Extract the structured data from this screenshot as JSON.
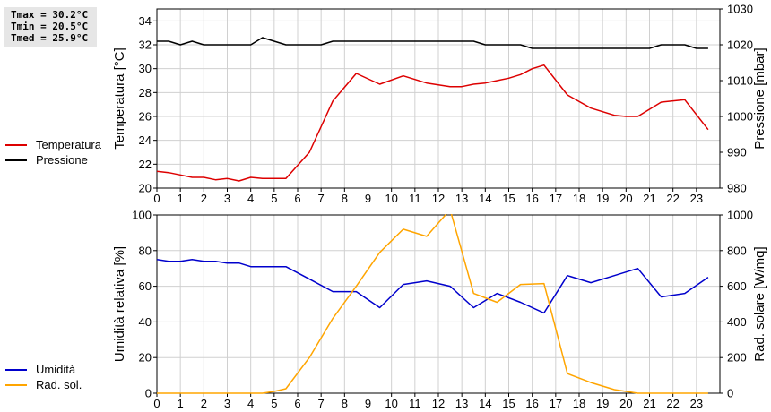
{
  "stats": {
    "tmax": "Tmax = 30.2°C",
    "tmin": "Tmin = 20.5°C",
    "tmed": "Tmed = 25.9°C"
  },
  "legend_top": [
    {
      "label": "Temperatura",
      "color": "#dd0000"
    },
    {
      "label": "Pressione",
      "color": "#000000"
    }
  ],
  "legend_bottom": [
    {
      "label": "Umidità",
      "color": "#0000cc"
    },
    {
      "label": "Rad. sol.",
      "color": "#ffa500"
    }
  ],
  "chart_data": [
    {
      "type": "line",
      "ylabel": "Temperatura [°C]",
      "y2label": "Pressione [mbar]",
      "xlim": [
        0,
        24
      ],
      "ylim": [
        20,
        35
      ],
      "y2lim": [
        980,
        1030
      ],
      "yticks": [
        20,
        22,
        24,
        26,
        28,
        30,
        32,
        34
      ],
      "y2ticks": [
        980,
        990,
        1000,
        1010,
        1020,
        1030
      ],
      "xticks": [
        0,
        1,
        2,
        3,
        4,
        5,
        6,
        7,
        8,
        9,
        10,
        11,
        12,
        13,
        14,
        15,
        16,
        17,
        18,
        19,
        20,
        21,
        22,
        23
      ],
      "grid": true,
      "series": [
        {
          "name": "Temperatura",
          "axis": "left",
          "color": "#dd0000",
          "x": [
            0,
            0.5,
            1,
            1.5,
            2,
            2.5,
            3,
            3.5,
            4,
            4.5,
            5,
            5.5,
            6.5,
            7.5,
            8.5,
            9.5,
            10.5,
            11.5,
            12.5,
            13,
            13.5,
            14,
            14.5,
            15,
            15.5,
            16,
            16.5,
            17.5,
            18.5,
            19.5,
            20,
            20.5,
            21.5,
            22.5,
            23.5
          ],
          "y": [
            21.4,
            21.3,
            21.1,
            20.9,
            20.9,
            20.7,
            20.8,
            20.6,
            20.9,
            20.8,
            20.8,
            20.8,
            23.0,
            27.3,
            29.6,
            28.7,
            29.4,
            28.8,
            28.5,
            28.5,
            28.7,
            28.8,
            29.0,
            29.2,
            29.5,
            30.0,
            30.3,
            27.8,
            26.7,
            26.1,
            26.0,
            26.0,
            27.2,
            27.4,
            24.9
          ]
        },
        {
          "name": "Pressione",
          "axis": "right",
          "color": "#000000",
          "x": [
            0,
            0.5,
            1,
            1.5,
            2,
            2.5,
            3,
            3.5,
            4,
            4.5,
            5,
            5.5,
            6,
            6.5,
            7,
            7.5,
            8,
            8.5,
            9,
            9.5,
            10,
            10.5,
            11,
            11.5,
            12,
            12.5,
            13,
            13.5,
            14,
            14.5,
            15,
            15.5,
            16,
            16.5,
            17,
            17.5,
            18,
            18.5,
            19,
            19.5,
            20,
            20.5,
            21,
            21.5,
            22,
            22.5,
            23,
            23.5
          ],
          "y": [
            1021,
            1021,
            1020,
            1021,
            1020,
            1020,
            1020,
            1020,
            1020,
            1022,
            1021,
            1020,
            1020,
            1020,
            1020,
            1021,
            1021,
            1021,
            1021,
            1021,
            1021,
            1021,
            1021,
            1021,
            1021,
            1021,
            1021,
            1021,
            1020,
            1020,
            1020,
            1020,
            1019,
            1019,
            1019,
            1019,
            1019,
            1019,
            1019,
            1019,
            1019,
            1019,
            1019,
            1020,
            1020,
            1020,
            1019,
            1019
          ]
        }
      ]
    },
    {
      "type": "line",
      "ylabel": "Umidità relativa [%]",
      "y2label": "Rad. solare [W/mq]",
      "xlim": [
        0,
        24
      ],
      "ylim": [
        0,
        100
      ],
      "y2lim": [
        0,
        1000
      ],
      "yticks": [
        0,
        20,
        40,
        60,
        80,
        100
      ],
      "y2ticks": [
        0,
        200,
        400,
        600,
        800,
        1000
      ],
      "xticks": [
        0,
        1,
        2,
        3,
        4,
        5,
        6,
        7,
        8,
        9,
        10,
        11,
        12,
        13,
        14,
        15,
        16,
        17,
        18,
        19,
        20,
        21,
        22,
        23
      ],
      "grid": true,
      "series": [
        {
          "name": "Umidità",
          "axis": "left",
          "color": "#0000cc",
          "x": [
            0,
            0.5,
            1,
            1.5,
            2,
            2.5,
            3,
            3.5,
            4,
            4.5,
            5,
            5.5,
            6.5,
            7.5,
            8.5,
            9.5,
            10.5,
            11.5,
            12.5,
            13.5,
            14.5,
            15.5,
            16.5,
            17.5,
            18.5,
            19.5,
            20.5,
            21.5,
            22.5,
            23.5
          ],
          "y": [
            75,
            74,
            74,
            75,
            74,
            74,
            73,
            73,
            71,
            71,
            71,
            71,
            64,
            57,
            57,
            48,
            61,
            63,
            60,
            48,
            56,
            51,
            45,
            66,
            62,
            66,
            70,
            54,
            56,
            65
          ]
        },
        {
          "name": "Rad. sol.",
          "axis": "right",
          "color": "#ffa500",
          "x": [
            0,
            0.5,
            1,
            1.5,
            2,
            2.5,
            3,
            3.5,
            4,
            4.5,
            5,
            5.5,
            6.5,
            7.5,
            8.5,
            9.5,
            10.5,
            11.5,
            12.5,
            13.5,
            14.5,
            15.5,
            16.5,
            17.5,
            18.5,
            19.5,
            20.5,
            21.5,
            22.5,
            23.5
          ],
          "y": [
            0,
            0,
            0,
            0,
            0,
            0,
            0,
            0,
            0,
            0,
            10,
            25,
            200,
            420,
            600,
            790,
            920,
            880,
            1030,
            560,
            510,
            610,
            615,
            110,
            60,
            20,
            0,
            0,
            0,
            0
          ]
        }
      ]
    }
  ]
}
